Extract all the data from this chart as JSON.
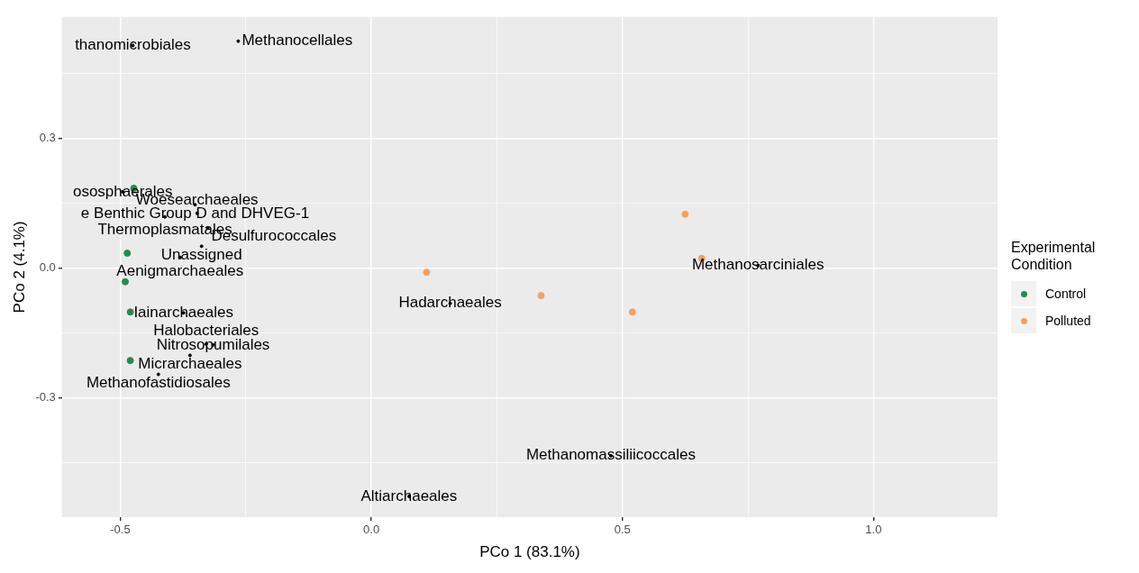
{
  "chart_data": {
    "type": "scatter",
    "xlabel": "PCo 1 (83.1%)",
    "ylabel": "PCo 2 (4.1%)",
    "legend_title": "Experimental Condition",
    "legend": "right",
    "grid": true,
    "marker": "circle",
    "xlim": [
      -0.616,
      1.247
    ],
    "ylim": [
      -0.576,
      0.58
    ],
    "xticks": [
      {
        "value": -0.5,
        "label": "-0.5"
      },
      {
        "value": -0.25,
        "label": null
      },
      {
        "value": 0,
        "label": "0.0"
      },
      {
        "value": 0.25,
        "label": null
      },
      {
        "value": 0.5,
        "label": "0.5"
      },
      {
        "value": 0.75,
        "label": null
      },
      {
        "value": 1,
        "label": "1.0"
      }
    ],
    "yticks": [
      {
        "value": -0.45,
        "label": null
      },
      {
        "value": -0.3,
        "label": "-0.3"
      },
      {
        "value": -0.15,
        "label": null
      },
      {
        "value": 0,
        "label": "0.0"
      },
      {
        "value": 0.15,
        "label": null
      },
      {
        "value": 0.3,
        "label": "0.3"
      },
      {
        "value": 0.45,
        "label": null
      }
    ],
    "series": [
      {
        "name": "Control",
        "color": "#238b57",
        "x": [
          -0.473,
          -0.486,
          -0.49,
          -0.48,
          -0.48
        ],
        "values": [
          0.184,
          0.034,
          -0.032,
          -0.102,
          -0.214
        ]
      },
      {
        "name": "Polluted",
        "color": "#f4a15d",
        "x": [
          0.11,
          0.338,
          0.52,
          0.625,
          0.658
        ],
        "values": [
          -0.01,
          -0.064,
          -0.102,
          0.124,
          0.022
        ]
      },
      {
        "color": "#000000",
        "marker": "circle",
        "x": [
          -0.475,
          -0.265,
          -0.495,
          -0.351,
          -0.411,
          -0.347,
          -0.326,
          -0.338,
          -0.381,
          -0.374,
          -0.315,
          -0.329,
          -0.361,
          -0.424,
          0.157,
          0.77,
          0.477,
          0.075
        ],
        "values": [
          0.514,
          0.524,
          0.176,
          0.146,
          0.118,
          0.126,
          0.092,
          0.05,
          0.024,
          -0.104,
          -0.178,
          -0.176,
          -0.202,
          -0.246,
          -0.082,
          0.006,
          -0.434,
          -0.528
        ],
        "value_labels": [
          "thanomicrobiales",
          "Methanocellales",
          "ososphaerales",
          "e Benthic Group D and DHVEG-1",
          "Thermoplasmatales",
          "Woesearchaeales",
          "Desulfurococcales",
          "Unassigned",
          "Aenigmarchaeales",
          "Iainarchaeales",
          "Nitrosopumilales",
          "Halobacteriales",
          "Micrarchaeales",
          "Methanofastidiosales",
          "Hadarchaeales",
          "Methanosarciniales",
          "Methanomassiliicoccales",
          "Altiarchaeales"
        ]
      }
    ]
  }
}
